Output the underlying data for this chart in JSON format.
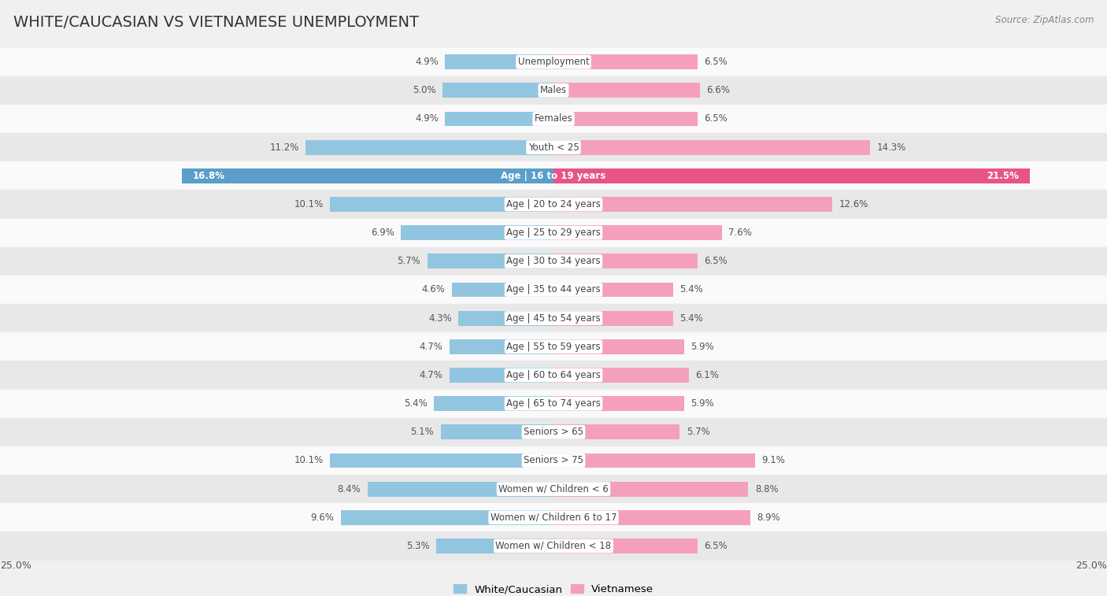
{
  "title": "WHITE/CAUCASIAN VS VIETNAMESE UNEMPLOYMENT",
  "source": "Source: ZipAtlas.com",
  "categories": [
    "Unemployment",
    "Males",
    "Females",
    "Youth < 25",
    "Age | 16 to 19 years",
    "Age | 20 to 24 years",
    "Age | 25 to 29 years",
    "Age | 30 to 34 years",
    "Age | 35 to 44 years",
    "Age | 45 to 54 years",
    "Age | 55 to 59 years",
    "Age | 60 to 64 years",
    "Age | 65 to 74 years",
    "Seniors > 65",
    "Seniors > 75",
    "Women w/ Children < 6",
    "Women w/ Children 6 to 17",
    "Women w/ Children < 18"
  ],
  "white_values": [
    4.9,
    5.0,
    4.9,
    11.2,
    16.8,
    10.1,
    6.9,
    5.7,
    4.6,
    4.3,
    4.7,
    4.7,
    5.4,
    5.1,
    10.1,
    8.4,
    9.6,
    5.3
  ],
  "viet_values": [
    6.5,
    6.6,
    6.5,
    14.3,
    21.5,
    12.6,
    7.6,
    6.5,
    5.4,
    5.4,
    5.9,
    6.1,
    5.9,
    5.7,
    9.1,
    8.8,
    8.9,
    6.5
  ],
  "white_color": "#92C5E0",
  "viet_color": "#F4A0BC",
  "white_highlight_color": "#5B9EC9",
  "viet_highlight_color": "#E8548A",
  "highlight_row": 4,
  "x_max": 25.0,
  "background_color": "#f0f0f0",
  "row_bg_even": "#fafafa",
  "row_bg_odd": "#e8e8e8",
  "legend_white": "White/Caucasian",
  "legend_viet": "Vietnamese",
  "title_fontsize": 14,
  "label_fontsize": 8.5,
  "value_fontsize": 8.5
}
